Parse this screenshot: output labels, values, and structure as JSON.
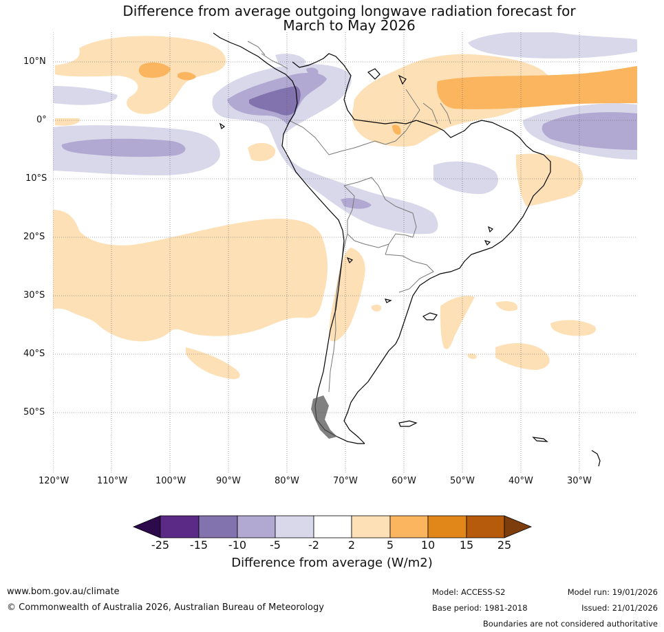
{
  "title": {
    "line1": "Difference from average outgoing longwave radiation forecast for",
    "line2": "March to May 2026"
  },
  "map": {
    "lat_labels": [
      "10°N",
      "0°",
      "10°S",
      "20°S",
      "30°S",
      "40°S",
      "50°S"
    ],
    "lon_labels": [
      "120°W",
      "110°W",
      "100°W",
      "90°W",
      "80°W",
      "70°W",
      "60°W",
      "50°W",
      "40°W",
      "30°W"
    ]
  },
  "colorbar": {
    "ticks": [
      "-25",
      "-15",
      "-10",
      "-5",
      "-2",
      "2",
      "5",
      "10",
      "15",
      "25"
    ],
    "colors": [
      "#2d0a4b",
      "#5b2a86",
      "#8273ae",
      "#b1a9d2",
      "#d9d8ea",
      "#ffffff",
      "#fde0b6",
      "#fbb55e",
      "#e18619",
      "#b65b0b",
      "#7e3d0c"
    ],
    "title": "Difference from average (W/m2)"
  },
  "footer": {
    "url": "www.bom.gov.au/climate",
    "copyright": "© Commonwealth of Australia 2026, Australian Bureau of Meteorology",
    "model": "Model: ACCESS-S2",
    "base_period": "Base period: 1981-2018",
    "model_run": "Model run: 19/01/2026",
    "issued": "Issued: 21/01/2026",
    "disclaimer": "Boundaries are not considered authoritative"
  }
}
